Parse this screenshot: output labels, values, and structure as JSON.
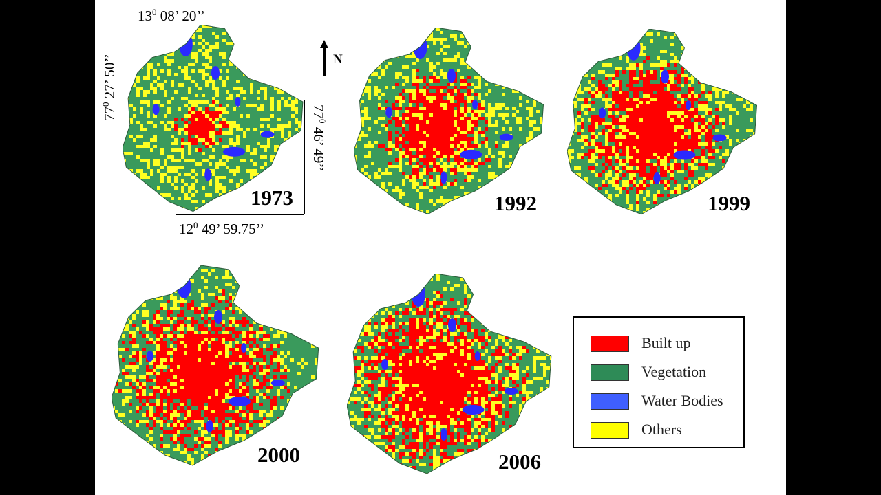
{
  "maps": [
    {
      "year": "1973",
      "shares": {
        "built_up": 0.06,
        "vegetation": 0.62,
        "water": 0.03,
        "others": 0.29
      }
    },
    {
      "year": "1992",
      "shares": {
        "built_up": 0.28,
        "vegetation": 0.45,
        "water": 0.02,
        "others": 0.25
      }
    },
    {
      "year": "1999",
      "shares": {
        "built_up": 0.45,
        "vegetation": 0.3,
        "water": 0.02,
        "others": 0.23
      }
    },
    {
      "year": "2000",
      "shares": {
        "built_up": 0.48,
        "vegetation": 0.32,
        "water": 0.02,
        "others": 0.18
      }
    },
    {
      "year": "2006",
      "shares": {
        "built_up": 0.55,
        "vegetation": 0.22,
        "water": 0.02,
        "others": 0.21
      }
    }
  ],
  "coordinates": {
    "top": {
      "deg": "13",
      "sup": "0",
      "rest": " 08’ 20’’"
    },
    "left": {
      "deg": "77",
      "sup": "0",
      "rest": " 27’ 50’’"
    },
    "right": {
      "deg": "77",
      "sup": "0",
      "rest": " 46’ 49’’"
    },
    "bottom": {
      "deg": "12",
      "sup": "0",
      "rest": " 49’ 59.75’’"
    }
  },
  "north_label": "N",
  "legend": {
    "items": [
      {
        "label": "Built up",
        "color": "#ff0000"
      },
      {
        "label": "Vegetation",
        "color": "#2e8b57"
      },
      {
        "label": "Water Bodies",
        "color": "#3f5fff"
      },
      {
        "label": "Others",
        "color": "#ffff00"
      }
    ]
  },
  "colors": {
    "built_up": "#ff0000",
    "vegetation": "#3a9a5c",
    "water": "#2a2aff",
    "others": "#ffff22"
  }
}
